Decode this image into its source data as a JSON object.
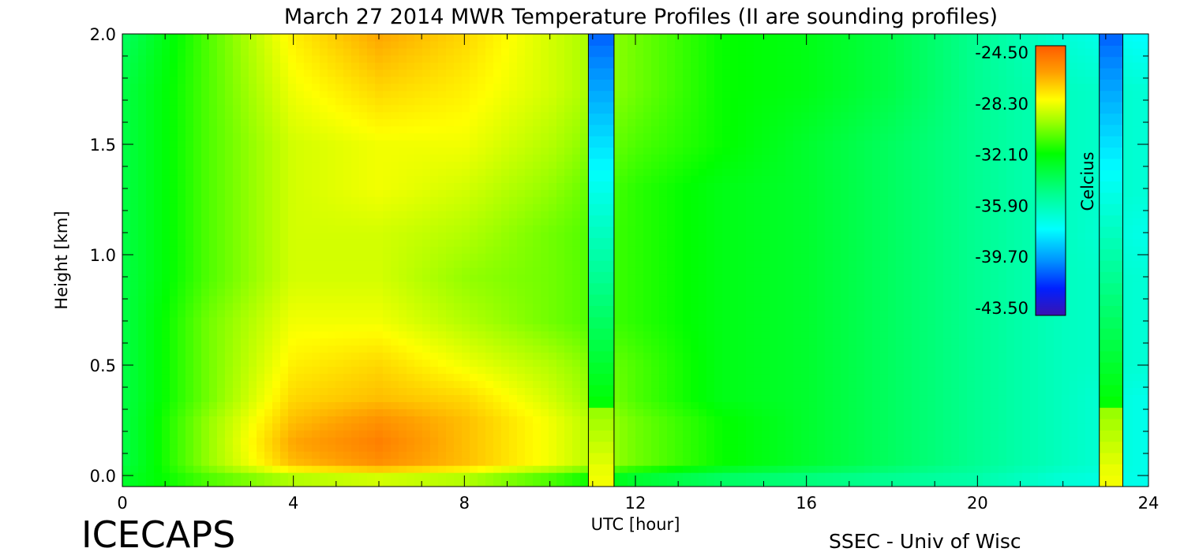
{
  "chart_data": {
    "type": "heatmap",
    "title": "March 27 2014 MWR Temperature Profiles (II are sounding profiles)",
    "xlabel": "UTC [hour]",
    "ylabel": "Height [km]",
    "xlim": [
      0,
      24
    ],
    "ylim": [
      0,
      2.0
    ],
    "x_ticks": [
      0,
      4,
      8,
      12,
      16,
      20,
      24
    ],
    "x_tick_labels": [
      "0",
      "4",
      "8",
      "12",
      "16",
      "20",
      "24"
    ],
    "y_ticks": [
      0,
      0.5,
      1.0,
      1.5,
      2.0
    ],
    "y_tick_labels": [
      "0.0",
      "0.5",
      "1.0",
      "1.5",
      "2.0"
    ],
    "colorbar": {
      "label": "Celcius",
      "range": [
        -43.5,
        -24.5
      ],
      "ticks": [
        "-24.50",
        "-28.30",
        "-32.10",
        "-35.90",
        "-39.70",
        "-43.50"
      ]
    },
    "sounding_profiles": [
      {
        "x_start": 10.9,
        "x_end": 11.5
      },
      {
        "x_start": 22.85,
        "x_end": 23.4
      }
    ],
    "heights_km": [
      0.0,
      0.05,
      0.15,
      0.25,
      0.35,
      0.5,
      0.7,
      0.9,
      1.1,
      1.3,
      1.5,
      1.75,
      2.0
    ],
    "times_hour": [
      0,
      2,
      4,
      6,
      8,
      10,
      12,
      14,
      16,
      18,
      20,
      22,
      24
    ],
    "temperature_C": [
      [
        -33.0,
        -31.0,
        -29.5,
        -29.0,
        -29.5,
        -31.0,
        -33.0,
        -34.0,
        -34.5,
        -35.0,
        -35.5,
        -36.5,
        -37.0
      ],
      [
        -33.5,
        -30.0,
        -27.0,
        -26.0,
        -27.0,
        -28.5,
        -30.5,
        -32.0,
        -33.0,
        -34.0,
        -35.0,
        -36.0,
        -37.0
      ],
      [
        -33.5,
        -30.0,
        -26.5,
        -25.5,
        -27.0,
        -28.5,
        -30.5,
        -32.0,
        -33.0,
        -34.0,
        -35.0,
        -36.0,
        -37.0
      ],
      [
        -33.5,
        -30.0,
        -27.0,
        -26.0,
        -27.0,
        -28.5,
        -30.5,
        -32.0,
        -33.0,
        -34.0,
        -35.0,
        -36.0,
        -37.0
      ],
      [
        -33.5,
        -30.5,
        -27.5,
        -27.0,
        -27.5,
        -29.0,
        -31.0,
        -32.5,
        -33.0,
        -34.0,
        -35.0,
        -36.0,
        -37.0
      ],
      [
        -33.5,
        -30.5,
        -28.0,
        -27.5,
        -28.5,
        -29.5,
        -31.0,
        -32.5,
        -33.0,
        -34.0,
        -35.0,
        -36.0,
        -36.5
      ],
      [
        -33.5,
        -30.5,
        -28.5,
        -28.5,
        -29.5,
        -30.5,
        -31.5,
        -32.5,
        -33.0,
        -34.0,
        -35.0,
        -36.0,
        -36.5
      ],
      [
        -33.5,
        -31.0,
        -29.0,
        -29.0,
        -30.0,
        -30.5,
        -31.5,
        -32.5,
        -33.0,
        -34.0,
        -35.0,
        -36.0,
        -36.5
      ],
      [
        -33.5,
        -31.0,
        -29.0,
        -29.0,
        -29.5,
        -30.5,
        -31.5,
        -32.5,
        -33.0,
        -34.0,
        -35.0,
        -36.0,
        -37.0
      ],
      [
        -33.5,
        -31.0,
        -29.0,
        -28.5,
        -29.0,
        -30.0,
        -31.5,
        -32.5,
        -33.0,
        -34.0,
        -35.0,
        -36.0,
        -36.5
      ],
      [
        -33.5,
        -31.0,
        -29.0,
        -28.5,
        -28.5,
        -29.5,
        -31.0,
        -32.0,
        -33.0,
        -34.0,
        -35.0,
        -36.0,
        -36.5
      ],
      [
        -33.5,
        -31.0,
        -28.5,
        -27.5,
        -28.0,
        -29.0,
        -30.5,
        -32.0,
        -32.5,
        -33.5,
        -35.0,
        -36.0,
        -36.5
      ],
      [
        -34.0,
        -31.0,
        -28.0,
        -26.5,
        -27.5,
        -29.0,
        -30.5,
        -32.0,
        -32.5,
        -33.5,
        -35.0,
        -36.5,
        -37.5
      ]
    ]
  },
  "footer": {
    "left": "ICECAPS",
    "right": "SSEC - Univ of Wisc"
  }
}
